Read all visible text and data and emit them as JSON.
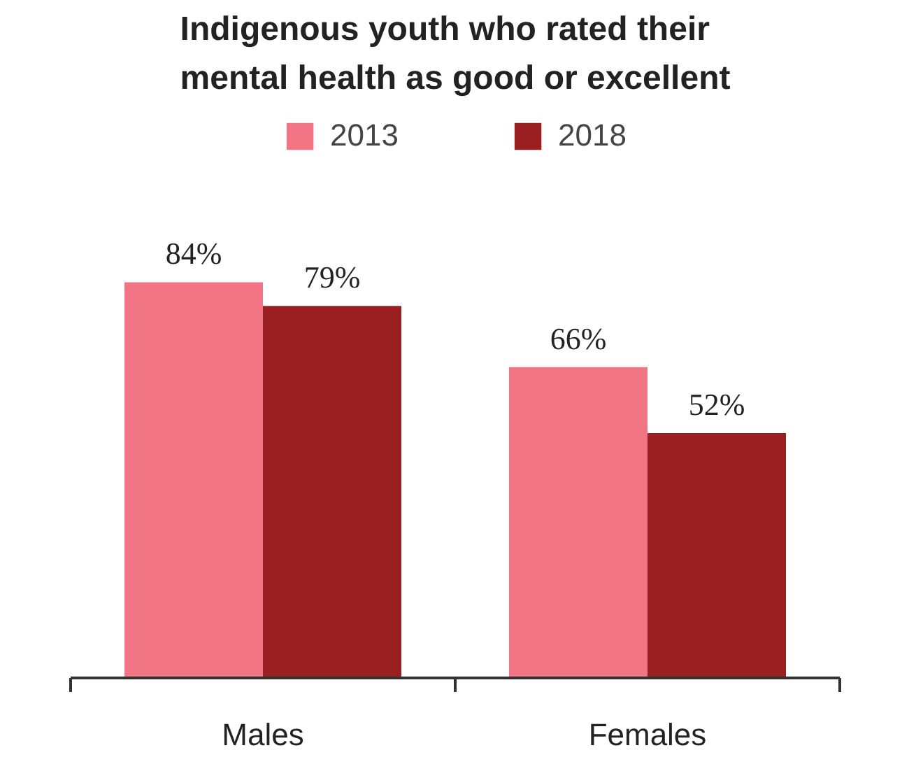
{
  "chart_data": {
    "type": "bar",
    "title": "Indigenous youth who rated their\nmental health as good or excellent",
    "categories": [
      "Males",
      "Females"
    ],
    "series": [
      {
        "name": "2013",
        "color": "#f27585",
        "values": [
          84,
          66
        ],
        "value_labels": [
          "84%",
          "66%"
        ]
      },
      {
        "name": "2018",
        "color": "#9a1f21",
        "values": [
          79,
          52
        ],
        "value_labels": [
          "79%",
          "52%"
        ]
      }
    ],
    "legend": "top"
  }
}
